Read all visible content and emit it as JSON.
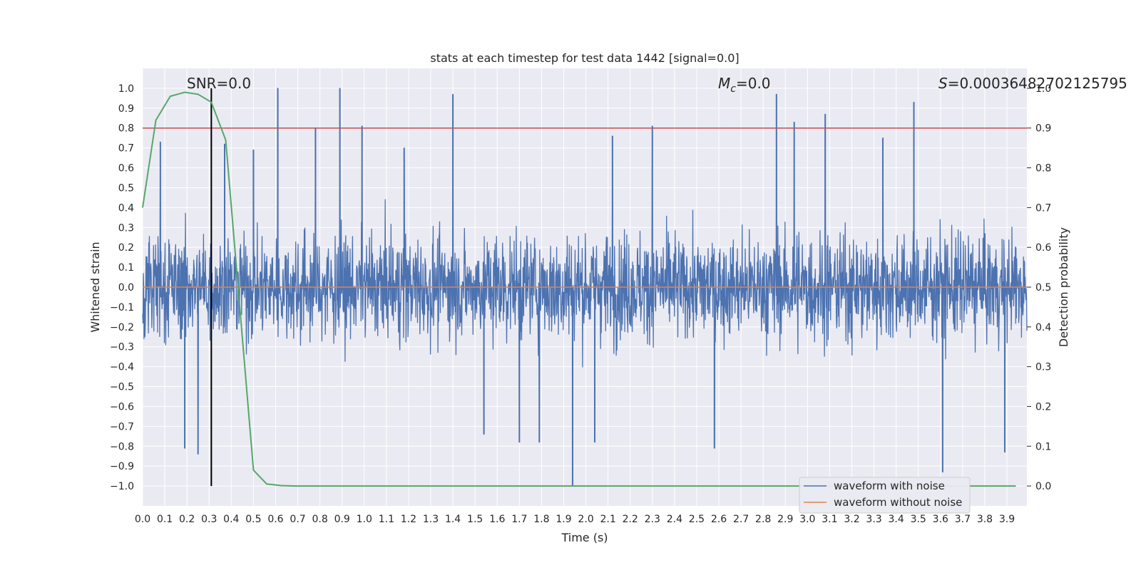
{
  "chart_data": {
    "type": "line",
    "title": "stats at each timestep for test data 1442 [signal=0.0]",
    "xlabel": "Time (s)",
    "ylabel": "Whitened strain",
    "y2label": "Detection probability",
    "xlim": [
      0.0,
      3.99
    ],
    "ylim": [
      -1.1,
      1.1
    ],
    "y2lim": [
      -0.05,
      1.05
    ],
    "x_ticks": [
      "0.0",
      "0.1",
      "0.2",
      "0.3",
      "0.4",
      "0.5",
      "0.6",
      "0.7",
      "0.8",
      "0.9",
      "1.0",
      "1.1",
      "1.2",
      "1.3",
      "1.4",
      "1.5",
      "1.6",
      "1.7",
      "1.8",
      "1.9",
      "2.0",
      "2.1",
      "2.2",
      "2.3",
      "2.4",
      "2.5",
      "2.6",
      "2.7",
      "2.8",
      "2.9",
      "3.0",
      "3.1",
      "3.2",
      "3.3",
      "3.4",
      "3.5",
      "3.6",
      "3.7",
      "3.8",
      "3.9"
    ],
    "y_ticks": [
      "1.0",
      "0.9",
      "0.8",
      "0.7",
      "0.6",
      "0.5",
      "0.4",
      "0.3",
      "0.2",
      "0.1",
      "0.0",
      "−0.1",
      "−0.2",
      "−0.3",
      "−0.4",
      "−0.5",
      "−0.6",
      "−0.7",
      "−0.8",
      "−0.9",
      "−1.0"
    ],
    "y2_ticks": [
      "1.0",
      "0.9",
      "0.8",
      "0.7",
      "0.6",
      "0.5",
      "0.4",
      "0.3",
      "0.2",
      "0.1",
      "0.0"
    ],
    "grid": true,
    "legend_position": "lower right",
    "annotations": {
      "snr": "SNR=0.0",
      "mc_symbol": "M",
      "mc_sub": "c",
      "mc_value": "=0.0",
      "s_symbol": "S",
      "s_value": "=0.00036482702125795"
    },
    "series": [
      {
        "name": "waveform with noise",
        "axis": "left",
        "color": "#4c72b0",
        "x_range": [
          0.0,
          3.99
        ],
        "envelope_description": "dense noise, mostly within -0.5..0.5",
        "spikes": [
          {
            "x": 0.08,
            "y": 0.73
          },
          {
            "x": 0.19,
            "y": -0.81
          },
          {
            "x": 0.25,
            "y": -0.84
          },
          {
            "x": 0.37,
            "y": 0.72
          },
          {
            "x": 0.5,
            "y": 0.69
          },
          {
            "x": 0.61,
            "y": 1.0
          },
          {
            "x": 0.78,
            "y": 0.8
          },
          {
            "x": 0.89,
            "y": 1.0
          },
          {
            "x": 0.99,
            "y": 0.81
          },
          {
            "x": 1.18,
            "y": 0.7
          },
          {
            "x": 1.4,
            "y": 0.97
          },
          {
            "x": 1.54,
            "y": -0.74
          },
          {
            "x": 1.7,
            "y": -0.78
          },
          {
            "x": 1.79,
            "y": -0.78
          },
          {
            "x": 1.94,
            "y": -1.0
          },
          {
            "x": 2.04,
            "y": -0.78
          },
          {
            "x": 2.12,
            "y": 0.76
          },
          {
            "x": 2.3,
            "y": 0.81
          },
          {
            "x": 2.58,
            "y": -0.81
          },
          {
            "x": 2.86,
            "y": 0.97
          },
          {
            "x": 2.94,
            "y": 0.83
          },
          {
            "x": 3.08,
            "y": 0.87
          },
          {
            "x": 3.34,
            "y": 0.75
          },
          {
            "x": 3.48,
            "y": 0.93
          },
          {
            "x": 3.61,
            "y": -0.93
          },
          {
            "x": 3.89,
            "y": -0.83
          }
        ]
      },
      {
        "name": "waveform without noise",
        "axis": "left",
        "color": "#dd8452",
        "x": [
          0.0,
          3.99
        ],
        "y": [
          0.0,
          0.0
        ]
      },
      {
        "name": "detection probability",
        "axis": "right",
        "color": "#55a868",
        "x": [
          0.0,
          0.06,
          0.125,
          0.19,
          0.25,
          0.31,
          0.375,
          0.44,
          0.5,
          0.56,
          0.625,
          0.69,
          0.75,
          0.875,
          1.0,
          1.5,
          2.0,
          2.5,
          3.0,
          3.5,
          3.94
        ],
        "y": [
          0.7,
          0.92,
          0.98,
          0.99,
          0.985,
          0.965,
          0.87,
          0.44,
          0.04,
          0.005,
          0.001,
          0.0,
          0.0,
          0.0,
          0.0,
          0.0,
          0.0,
          0.0,
          0.0,
          0.0,
          0.0
        ]
      }
    ],
    "reference_lines": {
      "threshold_y2": 0.9,
      "threshold_color": "#c44e52",
      "vertical_x": 0.31,
      "vertical_y_range": [
        -1.0,
        1.0
      ],
      "vertical_color": "#000000"
    },
    "plot_background": "#eaeaf2",
    "grid_color": "#ffffff"
  }
}
